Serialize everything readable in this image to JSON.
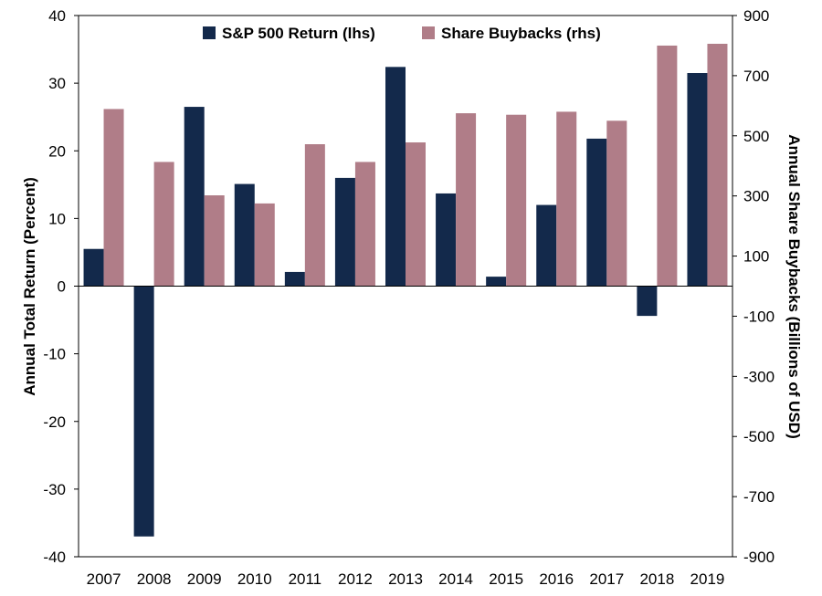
{
  "chart_data": {
    "type": "bar",
    "categories": [
      "2007",
      "2008",
      "2009",
      "2010",
      "2011",
      "2012",
      "2013",
      "2014",
      "2015",
      "2016",
      "2017",
      "2018",
      "2019"
    ],
    "series": [
      {
        "name": "S&P 500 Return (lhs)",
        "axis": "left",
        "color": "#13294b",
        "values": [
          5.5,
          -37.0,
          26.5,
          15.1,
          2.1,
          16.0,
          32.4,
          13.7,
          1.4,
          12.0,
          21.8,
          -4.4,
          31.5
        ]
      },
      {
        "name": "Share Buybacks (rhs)",
        "axis": "right",
        "color": "#b07d88",
        "values": [
          589,
          413,
          302,
          275,
          472,
          413,
          478,
          575,
          570,
          580,
          550,
          800,
          806
        ]
      }
    ],
    "ylabel_left": "Annual Total Return (Percent)",
    "ylabel_right": "Annual Share Buybacks (Billions of USD)",
    "ylim_left": [
      -40,
      40
    ],
    "ylim_right": [
      -900,
      900
    ],
    "yticks_left": [
      "40",
      "30",
      "20",
      "10",
      "0",
      "-10",
      "-20",
      "-30",
      "-40"
    ],
    "yticks_right": [
      "900",
      "700",
      "500",
      "300",
      "100",
      "-100",
      "-300",
      "-500",
      "-700",
      "-900"
    ],
    "legend_position": "top-center",
    "grid": false
  }
}
